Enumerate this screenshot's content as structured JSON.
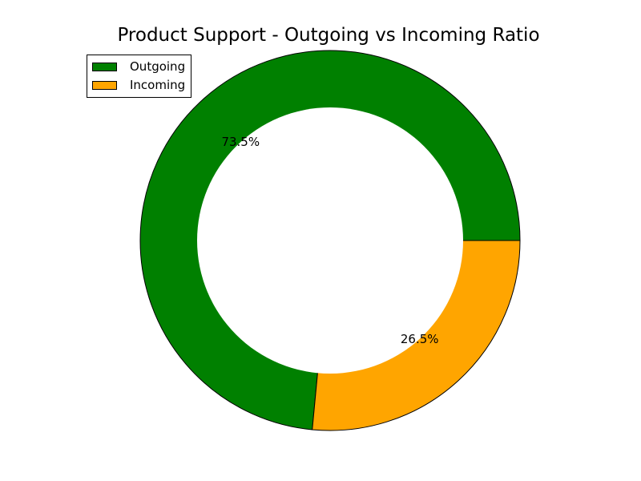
{
  "chart_data": {
    "type": "pie",
    "title": "Product Support - Outgoing vs Incoming Ratio",
    "donut": true,
    "legend_position": "top-left",
    "slices": [
      {
        "label": "Outgoing",
        "value": 73.5,
        "pct_label": "73.5%",
        "color": "#008000"
      },
      {
        "label": "Incoming",
        "value": 26.5,
        "pct_label": "26.5%",
        "color": "#FFA500"
      }
    ]
  }
}
